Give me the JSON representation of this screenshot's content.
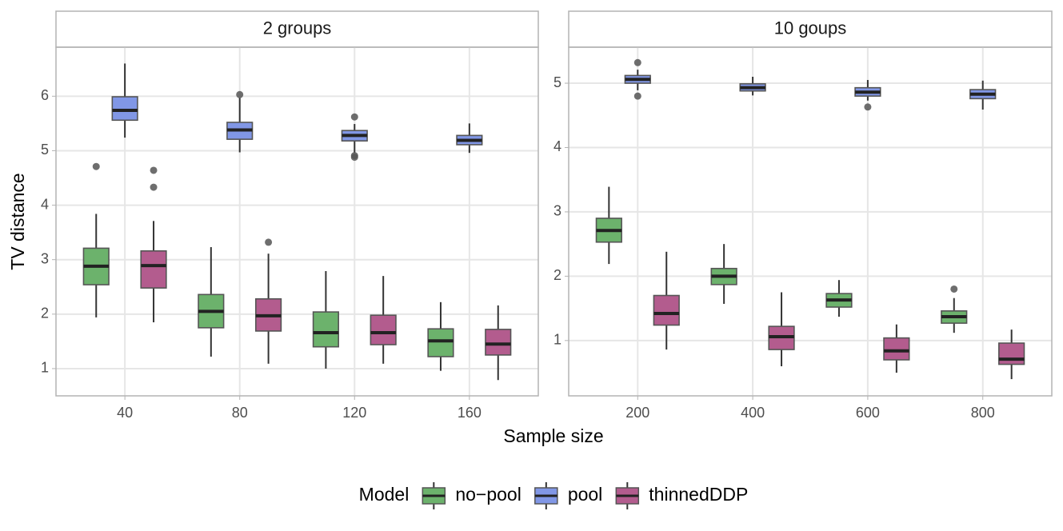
{
  "chart_data": [
    {
      "type": "box",
      "title": "2 groups",
      "xlabel": "Sample size",
      "ylabel": "TV distance",
      "legend_title": "Model",
      "categories": [
        "40",
        "80",
        "120",
        "160"
      ],
      "ylim": [
        0.5,
        6.9
      ],
      "yticks": [
        1,
        2,
        3,
        4,
        5,
        6
      ],
      "grid": true,
      "legend": "bottom",
      "series": [
        {
          "name": "no−pool",
          "color": "#6cb26c",
          "values": [
            {
              "whislo": 1.94,
              "q1": 2.54,
              "med": 2.88,
              "q3": 3.21,
              "whishi": 3.84,
              "outliers": [
                4.71
              ]
            },
            {
              "whislo": 1.22,
              "q1": 1.75,
              "med": 2.05,
              "q3": 2.36,
              "whishi": 3.23,
              "outliers": []
            },
            {
              "whislo": 1.0,
              "q1": 1.4,
              "med": 1.66,
              "q3": 2.04,
              "whishi": 2.79,
              "outliers": []
            },
            {
              "whislo": 0.96,
              "q1": 1.22,
              "med": 1.51,
              "q3": 1.73,
              "whishi": 2.22,
              "outliers": []
            }
          ]
        },
        {
          "name": "pool",
          "color": "#8197e6",
          "values": [
            {
              "whislo": 5.24,
              "q1": 5.56,
              "med": 5.74,
              "q3": 5.99,
              "whishi": 6.6,
              "outliers": []
            },
            {
              "whislo": 4.97,
              "q1": 5.21,
              "med": 5.38,
              "q3": 5.52,
              "whishi": 5.97,
              "outliers": [
                6.03
              ]
            },
            {
              "whislo": 4.96,
              "q1": 5.18,
              "med": 5.28,
              "q3": 5.37,
              "whishi": 5.49,
              "outliers": [
                5.62,
                4.91,
                4.88
              ]
            },
            {
              "whislo": 4.96,
              "q1": 5.11,
              "med": 5.19,
              "q3": 5.28,
              "whishi": 5.5,
              "outliers": []
            }
          ]
        },
        {
          "name": "thinnedDDP",
          "color": "#b35c8e",
          "values": [
            {
              "whislo": 1.85,
              "q1": 2.48,
              "med": 2.89,
              "q3": 3.16,
              "whishi": 3.71,
              "outliers": [
                4.64,
                4.33
              ]
            },
            {
              "whislo": 1.09,
              "q1": 1.69,
              "med": 1.97,
              "q3": 2.28,
              "whishi": 3.11,
              "outliers": [
                3.32
              ]
            },
            {
              "whislo": 1.09,
              "q1": 1.44,
              "med": 1.66,
              "q3": 1.98,
              "whishi": 2.7,
              "outliers": []
            },
            {
              "whislo": 0.79,
              "q1": 1.25,
              "med": 1.45,
              "q3": 1.72,
              "whishi": 2.16,
              "outliers": []
            }
          ]
        }
      ]
    },
    {
      "type": "box",
      "title": "10 goups",
      "categories": [
        "200",
        "400",
        "600",
        "800"
      ],
      "ylim": [
        0.14,
        5.56
      ],
      "yticks": [
        1,
        2,
        3,
        4,
        5
      ],
      "grid": true,
      "series": [
        {
          "name": "no−pool",
          "color": "#6cb26c",
          "values": [
            {
              "whislo": 2.19,
              "q1": 2.53,
              "med": 2.71,
              "q3": 2.9,
              "whishi": 3.39,
              "outliers": []
            },
            {
              "whislo": 1.57,
              "q1": 1.87,
              "med": 2.0,
              "q3": 2.12,
              "whishi": 2.5,
              "outliers": []
            },
            {
              "whislo": 1.37,
              "q1": 1.52,
              "med": 1.63,
              "q3": 1.73,
              "whishi": 1.94,
              "outliers": []
            },
            {
              "whislo": 1.12,
              "q1": 1.27,
              "med": 1.37,
              "q3": 1.46,
              "whishi": 1.66,
              "outliers": [
                1.8
              ]
            }
          ]
        },
        {
          "name": "pool",
          "color": "#8197e6",
          "values": [
            {
              "whislo": 4.89,
              "q1": 5.0,
              "med": 5.06,
              "q3": 5.12,
              "whishi": 5.21,
              "outliers": [
                5.32,
                4.8
              ]
            },
            {
              "whislo": 4.81,
              "q1": 4.88,
              "med": 4.93,
              "q3": 4.99,
              "whishi": 5.1,
              "outliers": []
            },
            {
              "whislo": 4.73,
              "q1": 4.8,
              "med": 4.86,
              "q3": 4.93,
              "whishi": 5.05,
              "outliers": [
                4.63
              ]
            },
            {
              "whislo": 4.59,
              "q1": 4.76,
              "med": 4.83,
              "q3": 4.9,
              "whishi": 5.04,
              "outliers": []
            }
          ]
        },
        {
          "name": "thinnedDDP",
          "color": "#b35c8e",
          "values": [
            {
              "whislo": 0.86,
              "q1": 1.24,
              "med": 1.42,
              "q3": 1.7,
              "whishi": 2.38,
              "outliers": []
            },
            {
              "whislo": 0.6,
              "q1": 0.86,
              "med": 1.06,
              "q3": 1.22,
              "whishi": 1.75,
              "outliers": []
            },
            {
              "whislo": 0.5,
              "q1": 0.7,
              "med": 0.84,
              "q3": 1.04,
              "whishi": 1.25,
              "outliers": []
            },
            {
              "whislo": 0.4,
              "q1": 0.63,
              "med": 0.71,
              "q3": 0.96,
              "whishi": 1.17,
              "outliers": []
            }
          ]
        }
      ]
    }
  ]
}
